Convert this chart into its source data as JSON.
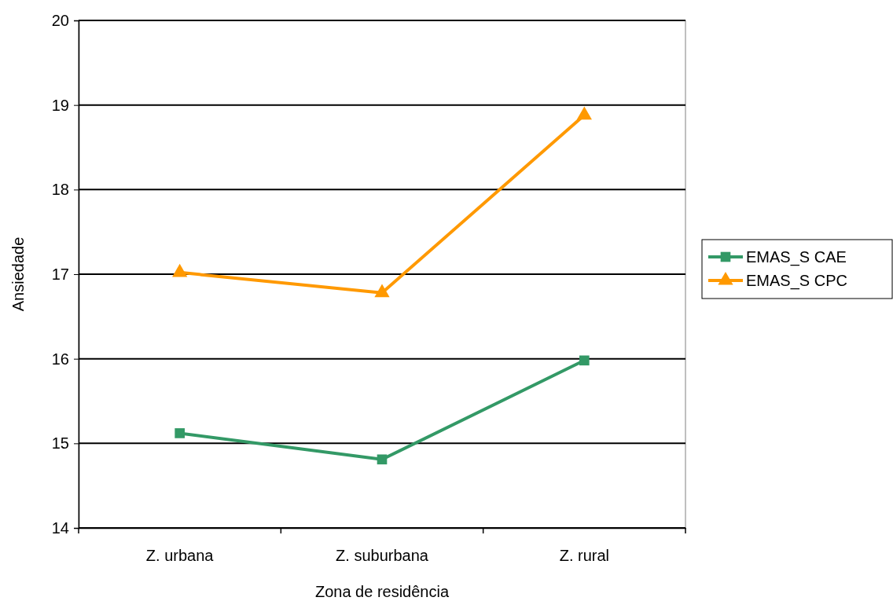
{
  "chart_data": {
    "type": "line",
    "xlabel": "Zona de residência",
    "ylabel": "Ansiedade",
    "categories": [
      "Z. urbana",
      "Z. suburbana",
      "Z. rural"
    ],
    "series": [
      {
        "name": "EMAS_S CAE",
        "color": "#339966",
        "marker": "square",
        "values": [
          15.12,
          14.81,
          15.98
        ]
      },
      {
        "name": "EMAS_S CPC",
        "color": "#ff9900",
        "marker": "triangle",
        "values": [
          17.02,
          16.78,
          18.88
        ]
      }
    ],
    "ylim": [
      14,
      20
    ],
    "yticks": [
      14,
      15,
      16,
      17,
      18,
      19,
      20
    ],
    "grid": "y",
    "legend": "right"
  }
}
